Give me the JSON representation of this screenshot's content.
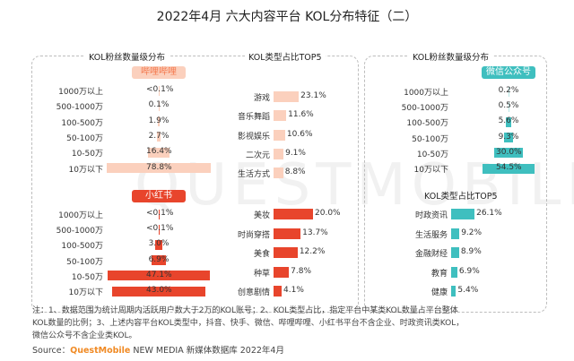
{
  "title": "2022年4月 六大内容平台 KOL分布特征（二）",
  "watermark": "QUESTMOBILE",
  "colors": {
    "bilibili_accent": "#f47a4f",
    "bilibili_light": "#fbd0bd",
    "xhs_accent": "#e8452c",
    "xhs_dark": "#d93b22",
    "wechat_accent": "#3fbfbf",
    "wechat_light": "#b7e8e6"
  },
  "left_panel": {
    "col1_title": "KOL粉丝数量级分布",
    "col2_title": "KOL类型占比TOP5"
  },
  "right_panel": {
    "col1_title": "KOL粉丝数量级分布",
    "col2_title": "KOL类型占比TOP5"
  },
  "notes": [
    "注：1、数据范围为统计周期内活跃用户数大于2万的KOL账号；2、KOL类型占比，指定平台中某类KOL数量占平台整体",
    "KOL数量的比例；3、上述内容平台KOL类型中，抖音、快手、微信、哔哩哔哩、小红书平台不含企业、时政资讯类KOL，",
    "微信公众号不含企业类KOL。"
  ],
  "source": {
    "prefix": "Source：",
    "brand": "QuestMobile",
    "rest": " NEW MEDIA 新媒体数据库 2022年4月"
  },
  "chart_data": [
    {
      "type": "bar",
      "platform": "哔哩哔哩",
      "subtitle": "KOL粉丝数量级分布",
      "categories": [
        "1000万以上",
        "500-1000万",
        "100-500万",
        "50-100万",
        "10-50万",
        "10万以下"
      ],
      "values": [
        0.05,
        0.1,
        1.9,
        2.7,
        16.4,
        78.8
      ],
      "labels": [
        "<0.1%",
        "0.1%",
        "1.9%",
        "2.7%",
        "16.4%",
        "78.8%"
      ]
    },
    {
      "type": "bar",
      "platform": "哔哩哔哩",
      "subtitle": "KOL类型占比TOP5",
      "categories": [
        "游戏",
        "音乐舞蹈",
        "影视娱乐",
        "二次元",
        "生活方式"
      ],
      "values": [
        23.1,
        11.6,
        10.6,
        9.1,
        8.8
      ],
      "labels": [
        "23.1%",
        "11.6%",
        "10.6%",
        "9.1%",
        "8.8%"
      ]
    },
    {
      "type": "bar",
      "platform": "小红书",
      "subtitle": "KOL粉丝数量级分布",
      "categories": [
        "1000万以上",
        "500-1000万",
        "100-500万",
        "50-100万",
        "10-50万",
        "10万以下"
      ],
      "values": [
        0.05,
        0.05,
        3.0,
        6.9,
        47.1,
        43.0
      ],
      "labels": [
        "<0.1%",
        "<0.1%",
        "3.0%",
        "6.9%",
        "47.1%",
        "43.0%"
      ]
    },
    {
      "type": "bar",
      "platform": "小红书",
      "subtitle": "KOL类型占比TOP5",
      "categories": [
        "美妆",
        "时尚穿搭",
        "美食",
        "种草",
        "创意剧情"
      ],
      "values": [
        20.0,
        13.7,
        12.2,
        7.8,
        4.1
      ],
      "labels": [
        "20.0%",
        "13.7%",
        "12.2%",
        "7.8%",
        "4.1%"
      ]
    },
    {
      "type": "bar",
      "platform": "微信公众号",
      "subtitle": "KOL粉丝数量级分布",
      "categories": [
        "1000万以上",
        "500-1000万",
        "100-500万",
        "50-100万",
        "10-50万",
        "10万以下"
      ],
      "values": [
        0.2,
        0.5,
        5.6,
        9.3,
        30.0,
        54.5
      ],
      "labels": [
        "0.2%",
        "0.5%",
        "5.6%",
        "9.3%",
        "30.0%",
        "54.5%"
      ]
    },
    {
      "type": "bar",
      "platform": "微信公众号",
      "subtitle": "KOL类型占比TOP5",
      "categories": [
        "时政资讯",
        "生活服务",
        "金融财经",
        "教育",
        "健康"
      ],
      "values": [
        26.1,
        9.2,
        8.9,
        6.9,
        5.4
      ],
      "labels": [
        "26.1%",
        "9.2%",
        "8.9%",
        "6.9%",
        "5.4%"
      ]
    }
  ]
}
